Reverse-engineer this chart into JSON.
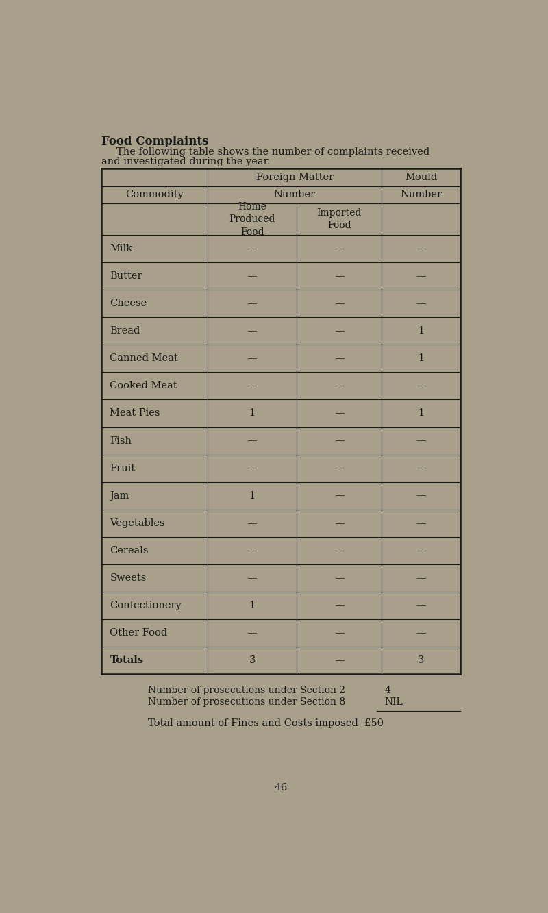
{
  "title": "Food Complaints",
  "subtitle_line1": "The following table shows the number of complaints received",
  "subtitle_line2": "and investigated during the year.",
  "background_color": "#a8a08a",
  "text_color": "#1a1a1a",
  "commodities": [
    "Milk",
    "Butter",
    "Cheese",
    "Bread",
    "Canned Meat",
    "Cooked Meat",
    "Meat Pies",
    "Fish",
    "Fruit",
    "Jam",
    "Vegetables",
    "Cereals",
    "Sweets",
    "Confectionery",
    "Other Food",
    "Totals"
  ],
  "col_home": [
    "—",
    "—",
    "—",
    "—",
    "—",
    "—",
    "1",
    "—",
    "—",
    "1",
    "—",
    "—",
    "—",
    "1",
    "—",
    "3"
  ],
  "col_imported": [
    "—",
    "—",
    "—",
    "—",
    "—",
    "—",
    "—",
    "—",
    "—",
    "—",
    "—",
    "—",
    "—",
    "—",
    "—",
    "—"
  ],
  "col_mould": [
    "—",
    "—",
    "—",
    "1",
    "1",
    "—",
    "1",
    "—",
    "—",
    "—",
    "—",
    "—",
    "—",
    "—",
    "—",
    "3"
  ],
  "page_number": "46",
  "font_family": "serif"
}
